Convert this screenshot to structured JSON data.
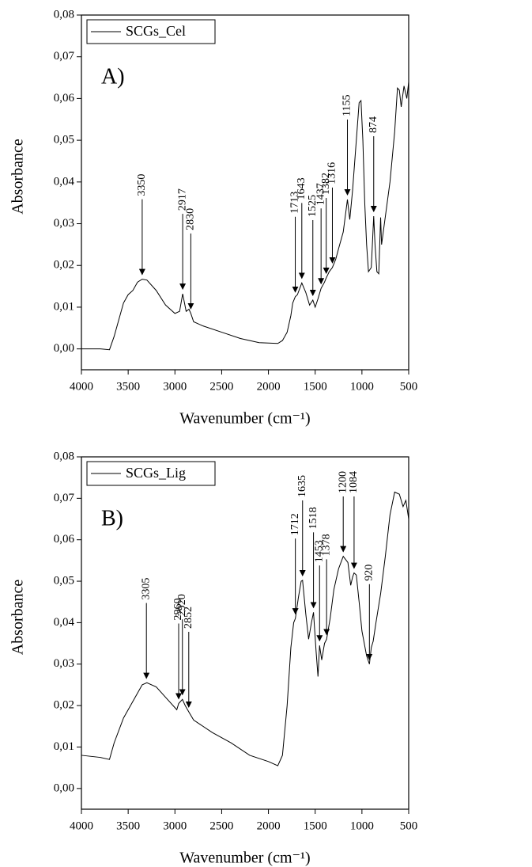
{
  "chart_data": [
    {
      "type": "line",
      "panel_label": "A)",
      "xlabel": "Wavenumber (cm⁻¹)",
      "ylabel": "Absorbance",
      "xlim": [
        4000,
        500
      ],
      "xticks": [
        4000,
        3500,
        3000,
        2500,
        2000,
        1500,
        1000,
        500
      ],
      "ylim": [
        -0.005,
        0.08
      ],
      "yticks": [
        {
          "value": 0,
          "label": "0,00"
        },
        {
          "value": 0.01,
          "label": "0,01"
        },
        {
          "value": 0.02,
          "label": "0,02"
        },
        {
          "value": 0.03,
          "label": "0,03"
        },
        {
          "value": 0.04,
          "label": "0,04"
        },
        {
          "value": 0.05,
          "label": "0,05"
        },
        {
          "value": 0.06,
          "label": "0,06"
        },
        {
          "value": 0.07,
          "label": "0,07"
        },
        {
          "value": 0.08,
          "label": "0,08"
        }
      ],
      "legend": "upper left",
      "x": [
        4000,
        3800,
        3700,
        3650,
        3600,
        3550,
        3500,
        3450,
        3400,
        3350,
        3300,
        3200,
        3100,
        3000,
        2950,
        2917,
        2880,
        2850,
        2830,
        2800,
        2700,
        2500,
        2300,
        2100,
        1900,
        1850,
        1800,
        1760,
        1740,
        1713,
        1690,
        1643,
        1600,
        1560,
        1525,
        1500,
        1470,
        1437,
        1400,
        1382,
        1350,
        1316,
        1280,
        1250,
        1200,
        1155,
        1130,
        1100,
        1060,
        1030,
        1010,
        990,
        970,
        950,
        930,
        900,
        874,
        860,
        840,
        820,
        800,
        790,
        760,
        700,
        650,
        620,
        600,
        580,
        550,
        520,
        500
      ],
      "series": [
        {
          "name": "SCGs_Cel",
          "color": "#000000",
          "values": [
            0.0,
            0.0,
            -0.0002,
            0.003,
            0.007,
            0.011,
            0.013,
            0.014,
            0.016,
            0.0167,
            0.0165,
            0.014,
            0.0105,
            0.0085,
            0.009,
            0.0132,
            0.009,
            0.0095,
            0.0085,
            0.0065,
            0.0055,
            0.004,
            0.0025,
            0.0015,
            0.0013,
            0.002,
            0.004,
            0.008,
            0.011,
            0.0125,
            0.013,
            0.0158,
            0.0135,
            0.0105,
            0.0117,
            0.01,
            0.012,
            0.0145,
            0.016,
            0.017,
            0.0185,
            0.0195,
            0.0215,
            0.024,
            0.028,
            0.0358,
            0.031,
            0.038,
            0.05,
            0.059,
            0.0595,
            0.05,
            0.035,
            0.025,
            0.0185,
            0.0195,
            0.0318,
            0.025,
            0.0185,
            0.018,
            0.0315,
            0.025,
            0.03,
            0.04,
            0.052,
            0.0625,
            0.062,
            0.058,
            0.063,
            0.06,
            0.064
          ]
        }
      ],
      "peaks": [
        3350,
        2917,
        2830,
        1713,
        1643,
        1525,
        1437,
        1382,
        1316,
        1155,
        874
      ]
    },
    {
      "type": "line",
      "panel_label": "B)",
      "xlabel": "Wavenumber (cm⁻¹)",
      "ylabel": "Absorbance",
      "xlim": [
        4000,
        500
      ],
      "xticks": [
        4000,
        3500,
        3000,
        2500,
        2000,
        1500,
        1000,
        500
      ],
      "ylim": [
        -0.005,
        0.08
      ],
      "yticks": [
        {
          "value": 0,
          "label": "0,00"
        },
        {
          "value": 0.01,
          "label": "0,01"
        },
        {
          "value": 0.02,
          "label": "0,02"
        },
        {
          "value": 0.03,
          "label": "0,03"
        },
        {
          "value": 0.04,
          "label": "0,04"
        },
        {
          "value": 0.05,
          "label": "0,05"
        },
        {
          "value": 0.06,
          "label": "0,06"
        },
        {
          "value": 0.07,
          "label": "0,07"
        },
        {
          "value": 0.08,
          "label": "0,08"
        }
      ],
      "legend": "upper left",
      "x": [
        4000,
        3800,
        3700,
        3650,
        3550,
        3450,
        3350,
        3300,
        3200,
        3100,
        3000,
        2980,
        2960,
        2920,
        2890,
        2852,
        2800,
        2600,
        2400,
        2200,
        2000,
        1900,
        1850,
        1800,
        1760,
        1730,
        1712,
        1680,
        1650,
        1635,
        1600,
        1570,
        1540,
        1518,
        1490,
        1470,
        1453,
        1430,
        1400,
        1378,
        1340,
        1300,
        1250,
        1200,
        1150,
        1120,
        1100,
        1084,
        1060,
        1030,
        1000,
        950,
        920,
        900,
        880,
        850,
        800,
        750,
        700,
        650,
        600,
        560,
        530,
        500
      ],
      "series": [
        {
          "name": "SCGs_Lig",
          "color": "#000000",
          "values": [
            0.008,
            0.0075,
            0.007,
            0.011,
            0.017,
            0.021,
            0.025,
            0.0255,
            0.0245,
            0.022,
            0.0195,
            0.019,
            0.0205,
            0.0215,
            0.02,
            0.0185,
            0.0165,
            0.0135,
            0.011,
            0.008,
            0.0065,
            0.0055,
            0.008,
            0.02,
            0.034,
            0.04,
            0.041,
            0.046,
            0.05,
            0.0502,
            0.042,
            0.036,
            0.04,
            0.0425,
            0.033,
            0.027,
            0.0345,
            0.031,
            0.035,
            0.036,
            0.041,
            0.048,
            0.053,
            0.056,
            0.0545,
            0.049,
            0.051,
            0.052,
            0.0515,
            0.045,
            0.038,
            0.032,
            0.03,
            0.034,
            0.0355,
            0.04,
            0.047,
            0.056,
            0.066,
            0.0715,
            0.071,
            0.068,
            0.0695,
            0.065
          ]
        }
      ],
      "peaks": [
        3305,
        2960,
        2920,
        2852,
        1712,
        1635,
        1518,
        1453,
        1378,
        1200,
        1084,
        920
      ]
    }
  ]
}
